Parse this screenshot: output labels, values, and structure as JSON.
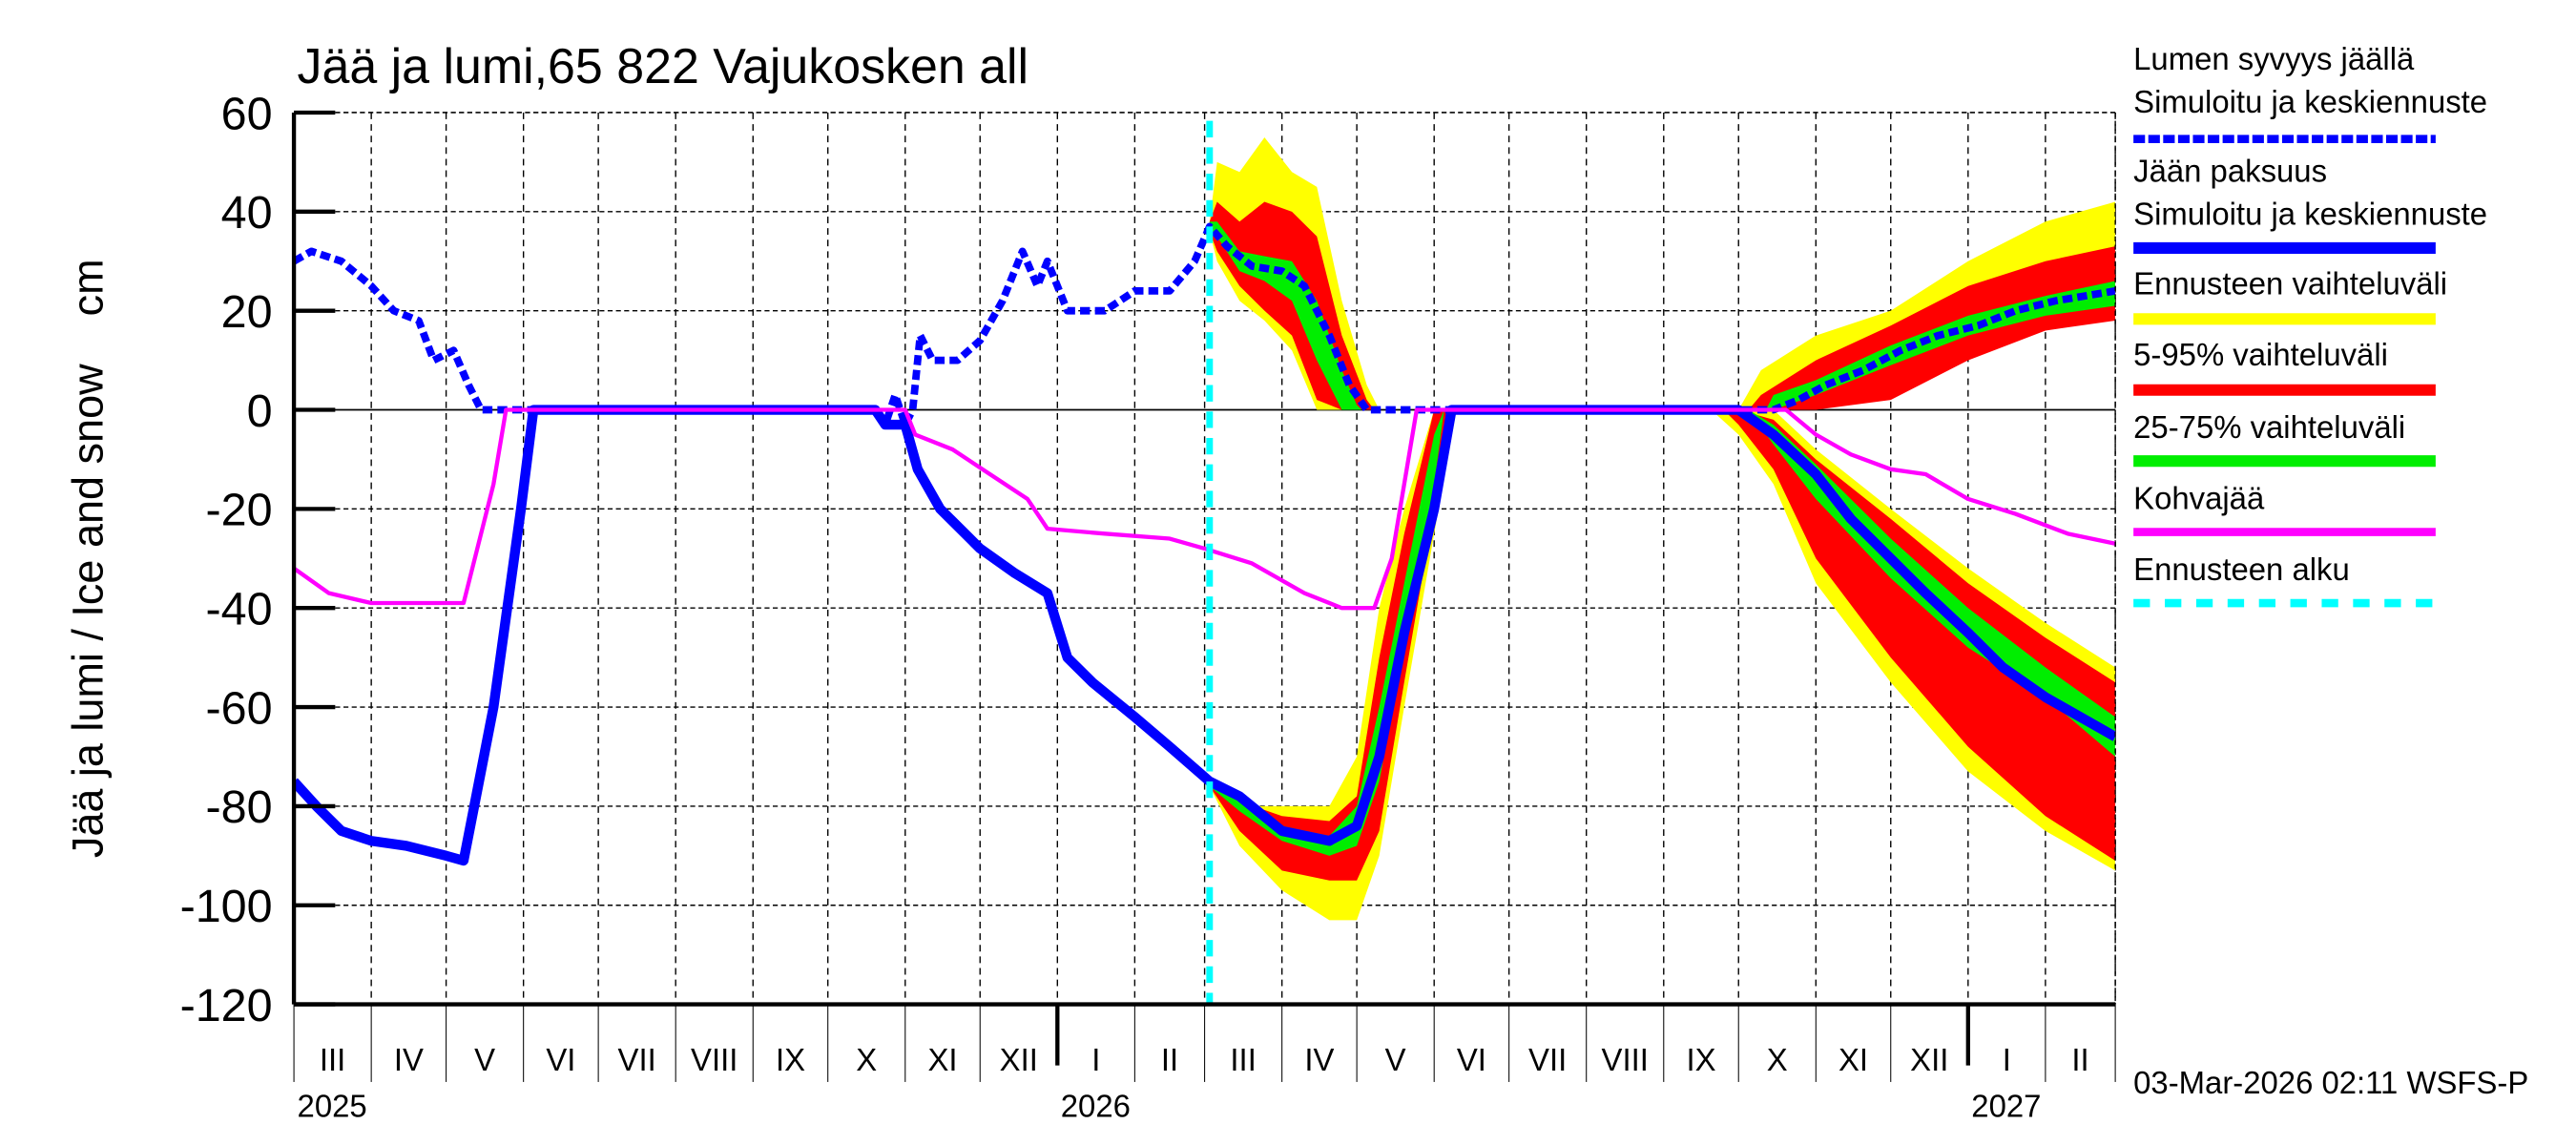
{
  "chart_data": {
    "type": "area",
    "title": "Jää ja lumi,65 822 Vajukosken all",
    "ylabel": "Jää ja lumi / Ice and snow    cm",
    "xlabel": "",
    "ylim": [
      -120,
      60
    ],
    "yticks": [
      60,
      40,
      20,
      0,
      -20,
      -40,
      -60,
      -80,
      -100,
      -120
    ],
    "xlim": [
      "2025-03-01",
      "2027-03-01"
    ],
    "month_labels": [
      "III",
      "IV",
      "V",
      "VI",
      "VII",
      "VIII",
      "IX",
      "X",
      "XI",
      "XII",
      "I",
      "II",
      "III",
      "IV",
      "V",
      "VI",
      "VII",
      "VIII",
      "IX",
      "X",
      "XI",
      "XII",
      "I",
      "II"
    ],
    "year_labels": [
      {
        "year": "2025",
        "date": "2025-03-01"
      },
      {
        "year": "2026",
        "date": "2026-01-01"
      },
      {
        "year": "2027",
        "date": "2027-01-01"
      }
    ],
    "grid": true,
    "legend_placement": "right",
    "forecast_start": "2026-03-03",
    "legend": [
      {
        "label1": "Lumen syvyys jäällä",
        "label2": "Simuloitu ja keskiennuste",
        "color": "#0000ff",
        "style": "dashed"
      },
      {
        "label1": "Jään paksuus",
        "label2": "Simuloitu ja keskiennuste",
        "color": "#0000ff",
        "style": "solid"
      },
      {
        "label1": "Ennusteen vaihteluväli",
        "color": "#ffff00",
        "style": "band"
      },
      {
        "label1": "5-95% vaihteluväli",
        "color": "#ff0000",
        "style": "band"
      },
      {
        "label1": "25-75% vaihteluväli",
        "color": "#00ee00",
        "style": "band"
      },
      {
        "label1": "Kohvajää",
        "color": "#ff00ff",
        "style": "solid"
      },
      {
        "label1": "Ennusteen alku",
        "color": "#00ffff",
        "style": "dashed"
      }
    ],
    "series": [
      {
        "name": "Lumen syvyys jäällä",
        "color": "#0000ff",
        "points": [
          [
            "2025-03-01",
            30
          ],
          [
            "2025-03-08",
            32
          ],
          [
            "2025-03-20",
            30
          ],
          [
            "2025-04-01",
            25
          ],
          [
            "2025-04-10",
            20
          ],
          [
            "2025-04-20",
            18
          ],
          [
            "2025-04-26",
            10
          ],
          [
            "2025-05-04",
            12
          ],
          [
            "2025-05-10",
            5
          ],
          [
            "2025-05-15",
            0
          ],
          [
            "2025-10-20",
            0
          ],
          [
            "2025-10-24",
            -3
          ],
          [
            "2025-10-28",
            3
          ],
          [
            "2025-11-01",
            -3
          ],
          [
            "2025-11-04",
            0
          ],
          [
            "2025-11-07",
            15
          ],
          [
            "2025-11-12",
            10
          ],
          [
            "2025-11-22",
            10
          ],
          [
            "2025-12-01",
            14
          ],
          [
            "2025-12-10",
            22
          ],
          [
            "2025-12-18",
            32
          ],
          [
            "2025-12-24",
            25
          ],
          [
            "2025-12-28",
            30
          ],
          [
            "2026-01-05",
            20
          ],
          [
            "2026-01-20",
            20
          ],
          [
            "2026-02-01",
            24
          ],
          [
            "2026-02-15",
            24
          ],
          [
            "2026-02-25",
            30
          ],
          [
            "2026-03-03",
            37
          ],
          [
            "2026-03-10",
            33
          ],
          [
            "2026-03-20",
            29
          ],
          [
            "2026-04-01",
            28
          ],
          [
            "2026-04-10",
            25
          ],
          [
            "2026-04-20",
            15
          ],
          [
            "2026-04-28",
            5
          ],
          [
            "2026-05-05",
            0
          ],
          [
            "2026-10-15",
            0
          ],
          [
            "2026-10-25",
            2
          ],
          [
            "2026-11-05",
            5
          ],
          [
            "2026-11-20",
            8
          ],
          [
            "2026-12-05",
            12
          ],
          [
            "2026-12-20",
            15
          ],
          [
            "2027-01-05",
            17
          ],
          [
            "2027-01-20",
            20
          ],
          [
            "2027-02-05",
            22
          ],
          [
            "2027-03-01",
            24
          ]
        ]
      },
      {
        "name": "Jään paksuus",
        "color": "#0000ff",
        "points": [
          [
            "2025-03-01",
            -75
          ],
          [
            "2025-03-10",
            -80
          ],
          [
            "2025-03-20",
            -85
          ],
          [
            "2025-04-01",
            -87
          ],
          [
            "2025-04-15",
            -88
          ],
          [
            "2025-05-01",
            -90
          ],
          [
            "2025-05-08",
            -91
          ],
          [
            "2025-05-20",
            -60
          ],
          [
            "2025-05-31",
            -20
          ],
          [
            "2025-06-05",
            0
          ],
          [
            "2025-10-20",
            0
          ],
          [
            "2025-10-24",
            -3
          ],
          [
            "2025-11-01",
            -3
          ],
          [
            "2025-11-06",
            -12
          ],
          [
            "2025-11-15",
            -20
          ],
          [
            "2025-12-01",
            -28
          ],
          [
            "2025-12-15",
            -33
          ],
          [
            "2025-12-28",
            -37
          ],
          [
            "2026-01-05",
            -50
          ],
          [
            "2026-01-15",
            -55
          ],
          [
            "2026-02-01",
            -62
          ],
          [
            "2026-02-15",
            -68
          ],
          [
            "2026-03-03",
            -75
          ],
          [
            "2026-03-15",
            -78
          ],
          [
            "2026-04-01",
            -85
          ],
          [
            "2026-04-20",
            -87
          ],
          [
            "2026-05-01",
            -84
          ],
          [
            "2026-05-10",
            -70
          ],
          [
            "2026-05-20",
            -45
          ],
          [
            "2026-06-01",
            -20
          ],
          [
            "2026-06-08",
            0
          ],
          [
            "2026-10-01",
            0
          ],
          [
            "2026-10-15",
            -5
          ],
          [
            "2026-11-01",
            -13
          ],
          [
            "2026-11-15",
            -22
          ],
          [
            "2026-12-01",
            -30
          ],
          [
            "2026-12-15",
            -37
          ],
          [
            "2027-01-01",
            -45
          ],
          [
            "2027-01-15",
            -52
          ],
          [
            "2027-02-01",
            -58
          ],
          [
            "2027-03-01",
            -66
          ]
        ]
      },
      {
        "name": "Kohvajää",
        "color": "#ff00ff",
        "points": [
          [
            "2025-03-01",
            -32
          ],
          [
            "2025-03-15",
            -37
          ],
          [
            "2025-04-01",
            -39
          ],
          [
            "2025-05-08",
            -39
          ],
          [
            "2025-05-20",
            -15
          ],
          [
            "2025-05-25",
            0
          ],
          [
            "2025-11-01",
            0
          ],
          [
            "2025-11-05",
            -5
          ],
          [
            "2025-11-20",
            -8
          ],
          [
            "2025-12-05",
            -13
          ],
          [
            "2025-12-20",
            -18
          ],
          [
            "2025-12-28",
            -24
          ],
          [
            "2026-01-20",
            -25
          ],
          [
            "2026-02-15",
            -26
          ],
          [
            "2026-03-01",
            -28
          ],
          [
            "2026-03-20",
            -31
          ],
          [
            "2026-04-10",
            -37
          ],
          [
            "2026-04-25",
            -40
          ],
          [
            "2026-05-08",
            -40
          ],
          [
            "2026-05-15",
            -30
          ],
          [
            "2026-05-25",
            0
          ],
          [
            "2026-10-20",
            0
          ],
          [
            "2026-11-01",
            -5
          ],
          [
            "2026-11-15",
            -9
          ],
          [
            "2026-12-01",
            -12
          ],
          [
            "2026-12-15",
            -13
          ],
          [
            "2027-01-01",
            -18
          ],
          [
            "2027-01-20",
            -21
          ],
          [
            "2027-02-10",
            -25
          ],
          [
            "2027-03-01",
            -27
          ]
        ]
      }
    ],
    "bands": [
      {
        "name": "Ennusteen vaihteluväli",
        "color": "#ffff00",
        "segments": [
          [
            [
              "2026-03-03",
              36,
              38
            ],
            [
              "2026-03-06",
              30,
              50
            ],
            [
              "2026-03-15",
              22,
              48
            ],
            [
              "2026-03-25",
              18,
              55
            ],
            [
              "2026-04-05",
              12,
              48
            ],
            [
              "2026-04-15",
              0,
              45
            ],
            [
              "2026-04-25",
              0,
              22
            ],
            [
              "2026-05-05",
              0,
              5
            ],
            [
              "2026-05-10",
              0,
              0
            ]
          ],
          [
            [
              "2026-10-01",
              0,
              0
            ],
            [
              "2026-10-10",
              0,
              8
            ],
            [
              "2026-11-01",
              0,
              15
            ],
            [
              "2026-12-01",
              5,
              20
            ],
            [
              "2027-01-01",
              12,
              30
            ],
            [
              "2027-02-01",
              18,
              38
            ],
            [
              "2027-03-01",
              20,
              42
            ]
          ],
          [
            [
              "2026-03-03",
              -76,
              -75
            ],
            [
              "2026-03-15",
              -88,
              -80
            ],
            [
              "2026-04-01",
              -97,
              -80
            ],
            [
              "2026-04-20",
              -103,
              -80
            ],
            [
              "2026-05-01",
              -103,
              -70
            ],
            [
              "2026-05-10",
              -90,
              -40
            ],
            [
              "2026-05-20",
              -60,
              -20
            ],
            [
              "2026-06-01",
              -25,
              0
            ],
            [
              "2026-06-10",
              0,
              0
            ]
          ],
          [
            [
              "2026-09-20",
              0,
              0
            ],
            [
              "2026-10-01",
              -5,
              0
            ],
            [
              "2026-10-15",
              -15,
              0
            ],
            [
              "2026-11-01",
              -35,
              -8
            ],
            [
              "2026-12-01",
              -55,
              -20
            ],
            [
              "2027-01-01",
              -73,
              -32
            ],
            [
              "2027-02-01",
              -85,
              -43
            ],
            [
              "2027-03-01",
              -93,
              -52
            ]
          ]
        ]
      },
      {
        "name": "5-95% vaihteluväli",
        "color": "#ff0000",
        "segments": [
          [
            [
              "2026-03-03",
              36,
              38
            ],
            [
              "2026-03-06",
              32,
              42
            ],
            [
              "2026-03-15",
              25,
              38
            ],
            [
              "2026-03-25",
              20,
              42
            ],
            [
              "2026-04-05",
              15,
              40
            ],
            [
              "2026-04-15",
              2,
              35
            ],
            [
              "2026-04-25",
              0,
              15
            ],
            [
              "2026-05-05",
              0,
              2
            ],
            [
              "2026-05-08",
              0,
              0
            ]
          ],
          [
            [
              "2026-10-05",
              0,
              0
            ],
            [
              "2026-10-10",
              0,
              3
            ],
            [
              "2026-11-01",
              0,
              10
            ],
            [
              "2026-12-01",
              2,
              17
            ],
            [
              "2027-01-01",
              10,
              25
            ],
            [
              "2027-02-01",
              16,
              30
            ],
            [
              "2027-03-01",
              18,
              33
            ]
          ],
          [
            [
              "2026-03-03",
              -76,
              -75
            ],
            [
              "2026-03-15",
              -85,
              -79
            ],
            [
              "2026-04-01",
              -93,
              -82
            ],
            [
              "2026-04-20",
              -95,
              -83
            ],
            [
              "2026-05-01",
              -95,
              -78
            ],
            [
              "2026-05-10",
              -85,
              -50
            ],
            [
              "2026-05-20",
              -55,
              -25
            ],
            [
              "2026-06-01",
              -20,
              0
            ],
            [
              "2026-06-08",
              0,
              0
            ]
          ],
          [
            [
              "2026-09-25",
              0,
              0
            ],
            [
              "2026-10-01",
              -3,
              0
            ],
            [
              "2026-10-15",
              -12,
              -2
            ],
            [
              "2026-11-01",
              -30,
              -10
            ],
            [
              "2026-12-01",
              -50,
              -22
            ],
            [
              "2027-01-01",
              -68,
              -35
            ],
            [
              "2027-02-01",
              -82,
              -46
            ],
            [
              "2027-03-01",
              -91,
              -55
            ]
          ]
        ]
      },
      {
        "name": "25-75% vaihteluväli",
        "color": "#00ee00",
        "segments": [
          [
            [
              "2026-03-03",
              36,
              38
            ],
            [
              "2026-03-06",
              35,
              38
            ],
            [
              "2026-03-15",
              28,
              32
            ],
            [
              "2026-03-25",
              26,
              31
            ],
            [
              "2026-04-05",
              22,
              30
            ],
            [
              "2026-04-15",
              10,
              22
            ],
            [
              "2026-04-25",
              0,
              8
            ],
            [
              "2026-05-01",
              0,
              1
            ],
            [
              "2026-05-03",
              0,
              0
            ]
          ],
          [
            [
              "2026-10-12",
              0,
              0
            ],
            [
              "2026-10-15",
              0,
              3
            ],
            [
              "2026-11-01",
              3,
              6
            ],
            [
              "2026-12-01",
              9,
              13
            ],
            [
              "2027-01-01",
              15,
              19
            ],
            [
              "2027-02-01",
              19,
              23
            ],
            [
              "2027-03-01",
              21,
              26
            ]
          ],
          [
            [
              "2026-03-03",
              -76,
              -75
            ],
            [
              "2026-03-15",
              -81,
              -79
            ],
            [
              "2026-04-01",
              -87,
              -84
            ],
            [
              "2026-04-20",
              -90,
              -86
            ],
            [
              "2026-05-01",
              -88,
              -80
            ],
            [
              "2026-05-10",
              -75,
              -60
            ],
            [
              "2026-05-20",
              -48,
              -35
            ],
            [
              "2026-06-01",
              -15,
              -5
            ],
            [
              "2026-06-05",
              0,
              0
            ]
          ],
          [
            [
              "2026-10-05",
              0,
              0
            ],
            [
              "2026-10-15",
              -7,
              -3
            ],
            [
              "2026-11-01",
              -18,
              -11
            ],
            [
              "2026-12-01",
              -34,
              -26
            ],
            [
              "2027-01-01",
              -48,
              -40
            ],
            [
              "2027-02-01",
              -58,
              -52
            ],
            [
              "2027-03-01",
              -70,
              -62
            ]
          ]
        ]
      }
    ]
  },
  "footer": "03-Mar-2026 02:11 WSFS-P"
}
